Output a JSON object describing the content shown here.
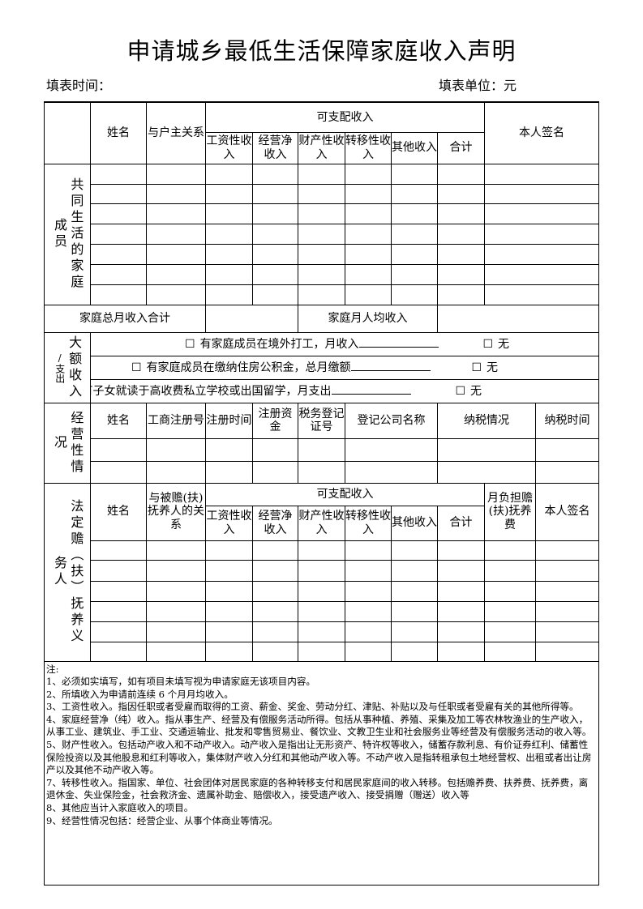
{
  "title": "申请城乡最低生活保障家庭收入声明",
  "fill_time_label": "填表时间：",
  "fill_unit_label": "填表单位：元",
  "household": {
    "section_label_a": "成员",
    "section_label_b": "共同生活的家庭",
    "name": "姓名",
    "relation": "与户主关系",
    "disposable": "可支配收入",
    "income_cols": [
      "工资性收入",
      "经营净收入",
      "财产性收入",
      "转移性收入",
      "其他收入",
      "合计"
    ],
    "signature": "本人签名",
    "row_count": 7,
    "total_label": "家庭总月收入合计",
    "per_capita_label": "家庭月人均收入"
  },
  "large": {
    "label_a": "/支出",
    "label_b": "大额收入",
    "checkbox": "☐",
    "lines": [
      {
        "text": "有家庭成员在境外打工，月收入",
        "none": "无"
      },
      {
        "text": "有家庭成员在缴纳住房公积金，总月缴额",
        "none": "无"
      },
      {
        "text": "有子女就读于高收费私立学校或出国留学，月支出",
        "none": "无"
      }
    ]
  },
  "business": {
    "label_a": "况",
    "label_b": "经营性情",
    "cols": [
      "姓名",
      "工商注册号",
      "注册时间",
      "注册资金",
      "税务登记证号",
      "登记公司名称",
      "纳税情况",
      "纳税时间"
    ],
    "row_count": 2
  },
  "support": {
    "label_a": "务人",
    "label_b": "法定赡（扶）抚养义",
    "name": "姓名",
    "relation": "与被赡(扶)抚养人的关系",
    "disposable": "可支配收入",
    "income_cols": [
      "工资性收入",
      "经营净收入",
      "财产性收入",
      "转移性收入",
      "其他收入",
      "合计"
    ],
    "monthly_burden": "月负担赡(扶)抚养费",
    "signature": "本人签名",
    "row_count": 6
  },
  "notes": [
    "注:",
    "1、必须如实填写，如有项目未填写视为申请家庭无该项目内容。",
    "2、所填收入为申请前连续 6 个月月均收入。",
    "3、工资性收入。指因任职或者受雇而取得的工资、薪金、奖金、劳动分红、津贴、补贴以及与任职或者受雇有关的其他所得等。",
    "4、家庭经营净（纯）收入。指从事生产、经营及有偿服务活动所得。包括从事种植、养殖、采集及加工等农林牧渔业的生产收入，从事工业、建筑业、手工业、交通运输业、批发和零售贸易业、餐饮业、文教卫生业和社会服务业等经营及有偿服务活动的收入等。",
    "5、财产性收入。包括动产收入和不动产收入。动产收入是指出让无形资产、特许权等收入，储蓄存款利息、有价证券红利、储蓄性保险投资以及其他股息和红利等收入，集体财产收入分红和其他动产收入等。不动产收入是指转租承包土地经营权、出租或者出让房产以及其他不动产收入等。",
    "7、转移性收入。指国家、单位、社会团体对居民家庭的各种转移支付和居民家庭间的收入转移。包括赡养费、扶养费、抚养费，离退休金、失业保险金，社会救济金、遗属补助金、赔偿收入，接受遗产收入、接受捐赠（赠送）收入等",
    "8、其他应当计入家庭收入的项目。",
    "9、经营性情况包括：经营企业、从事个体商业等情况。"
  ]
}
